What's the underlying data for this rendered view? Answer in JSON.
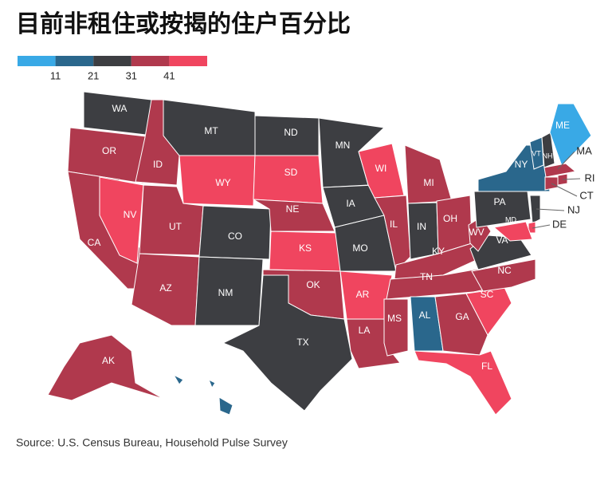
{
  "title": "目前非租住或按揭的住户百分比",
  "legend": {
    "colors": [
      "#39a9e6",
      "#2a678c",
      "#3d3e42",
      "#b0394d",
      "#f0455f"
    ],
    "ticks": [
      11,
      21,
      31,
      41
    ]
  },
  "states": [
    {
      "label": "WA",
      "color": "#3d3e42"
    },
    {
      "label": "OR",
      "color": "#b0394d"
    },
    {
      "label": "CA",
      "color": "#b0394d"
    },
    {
      "label": "NV",
      "color": "#f0455f"
    },
    {
      "label": "ID",
      "color": "#b0394d"
    },
    {
      "label": "MT",
      "color": "#3d3e42"
    },
    {
      "label": "WY",
      "color": "#f0455f"
    },
    {
      "label": "UT",
      "color": "#b0394d"
    },
    {
      "label": "AZ",
      "color": "#b0394d"
    },
    {
      "label": "CO",
      "color": "#3d3e42"
    },
    {
      "label": "NM",
      "color": "#3d3e42"
    },
    {
      "label": "ND",
      "color": "#3d3e42"
    },
    {
      "label": "SD",
      "color": "#f0455f"
    },
    {
      "label": "NE",
      "color": "#b0394d"
    },
    {
      "label": "KS",
      "color": "#f0455f"
    },
    {
      "label": "OK",
      "color": "#b0394d"
    },
    {
      "label": "TX",
      "color": "#3d3e42"
    },
    {
      "label": "MN",
      "color": "#3d3e42"
    },
    {
      "label": "IA",
      "color": "#3d3e42"
    },
    {
      "label": "MO",
      "color": "#3d3e42"
    },
    {
      "label": "AR",
      "color": "#f0455f"
    },
    {
      "label": "LA",
      "color": "#b0394d"
    },
    {
      "label": "WI",
      "color": "#f0455f"
    },
    {
      "label": "IL",
      "color": "#b0394d"
    },
    {
      "label": "MI",
      "color": "#b0394d"
    },
    {
      "label": "IN",
      "color": "#3d3e42"
    },
    {
      "label": "OH",
      "color": "#b0394d"
    },
    {
      "label": "KY",
      "color": "#b0394d"
    },
    {
      "label": "TN",
      "color": "#b0394d"
    },
    {
      "label": "MS",
      "color": "#b0394d"
    },
    {
      "label": "AL",
      "color": "#2a678c"
    },
    {
      "label": "GA",
      "color": "#b0394d"
    },
    {
      "label": "FL",
      "color": "#f0455f"
    },
    {
      "label": "SC",
      "color": "#f0455f"
    },
    {
      "label": "NC",
      "color": "#b0394d"
    },
    {
      "label": "VA",
      "color": "#3d3e42"
    },
    {
      "label": "WV",
      "color": "#b0394d"
    },
    {
      "label": "PA",
      "color": "#3d3e42"
    },
    {
      "label": "NY",
      "color": "#2a678c"
    },
    {
      "label": "VT",
      "color": "#2a678c"
    },
    {
      "label": "NH",
      "color": "#3d3e42"
    },
    {
      "label": "ME",
      "color": "#39a9e6"
    },
    {
      "label": "MA",
      "color": "#b0394d"
    },
    {
      "label": "CT",
      "color": "#b0394d"
    },
    {
      "label": "RI",
      "color": "#b0394d"
    },
    {
      "label": "NJ",
      "color": "#3d3e42"
    },
    {
      "label": "DE",
      "color": "#f0455f"
    },
    {
      "label": "MD",
      "color": "#f0455f"
    },
    {
      "label": "AK",
      "color": "#b0394d"
    },
    {
      "color": "#2a678c"
    }
  ],
  "source": "Source: U.S. Census Bureau, Household Pulse Survey"
}
